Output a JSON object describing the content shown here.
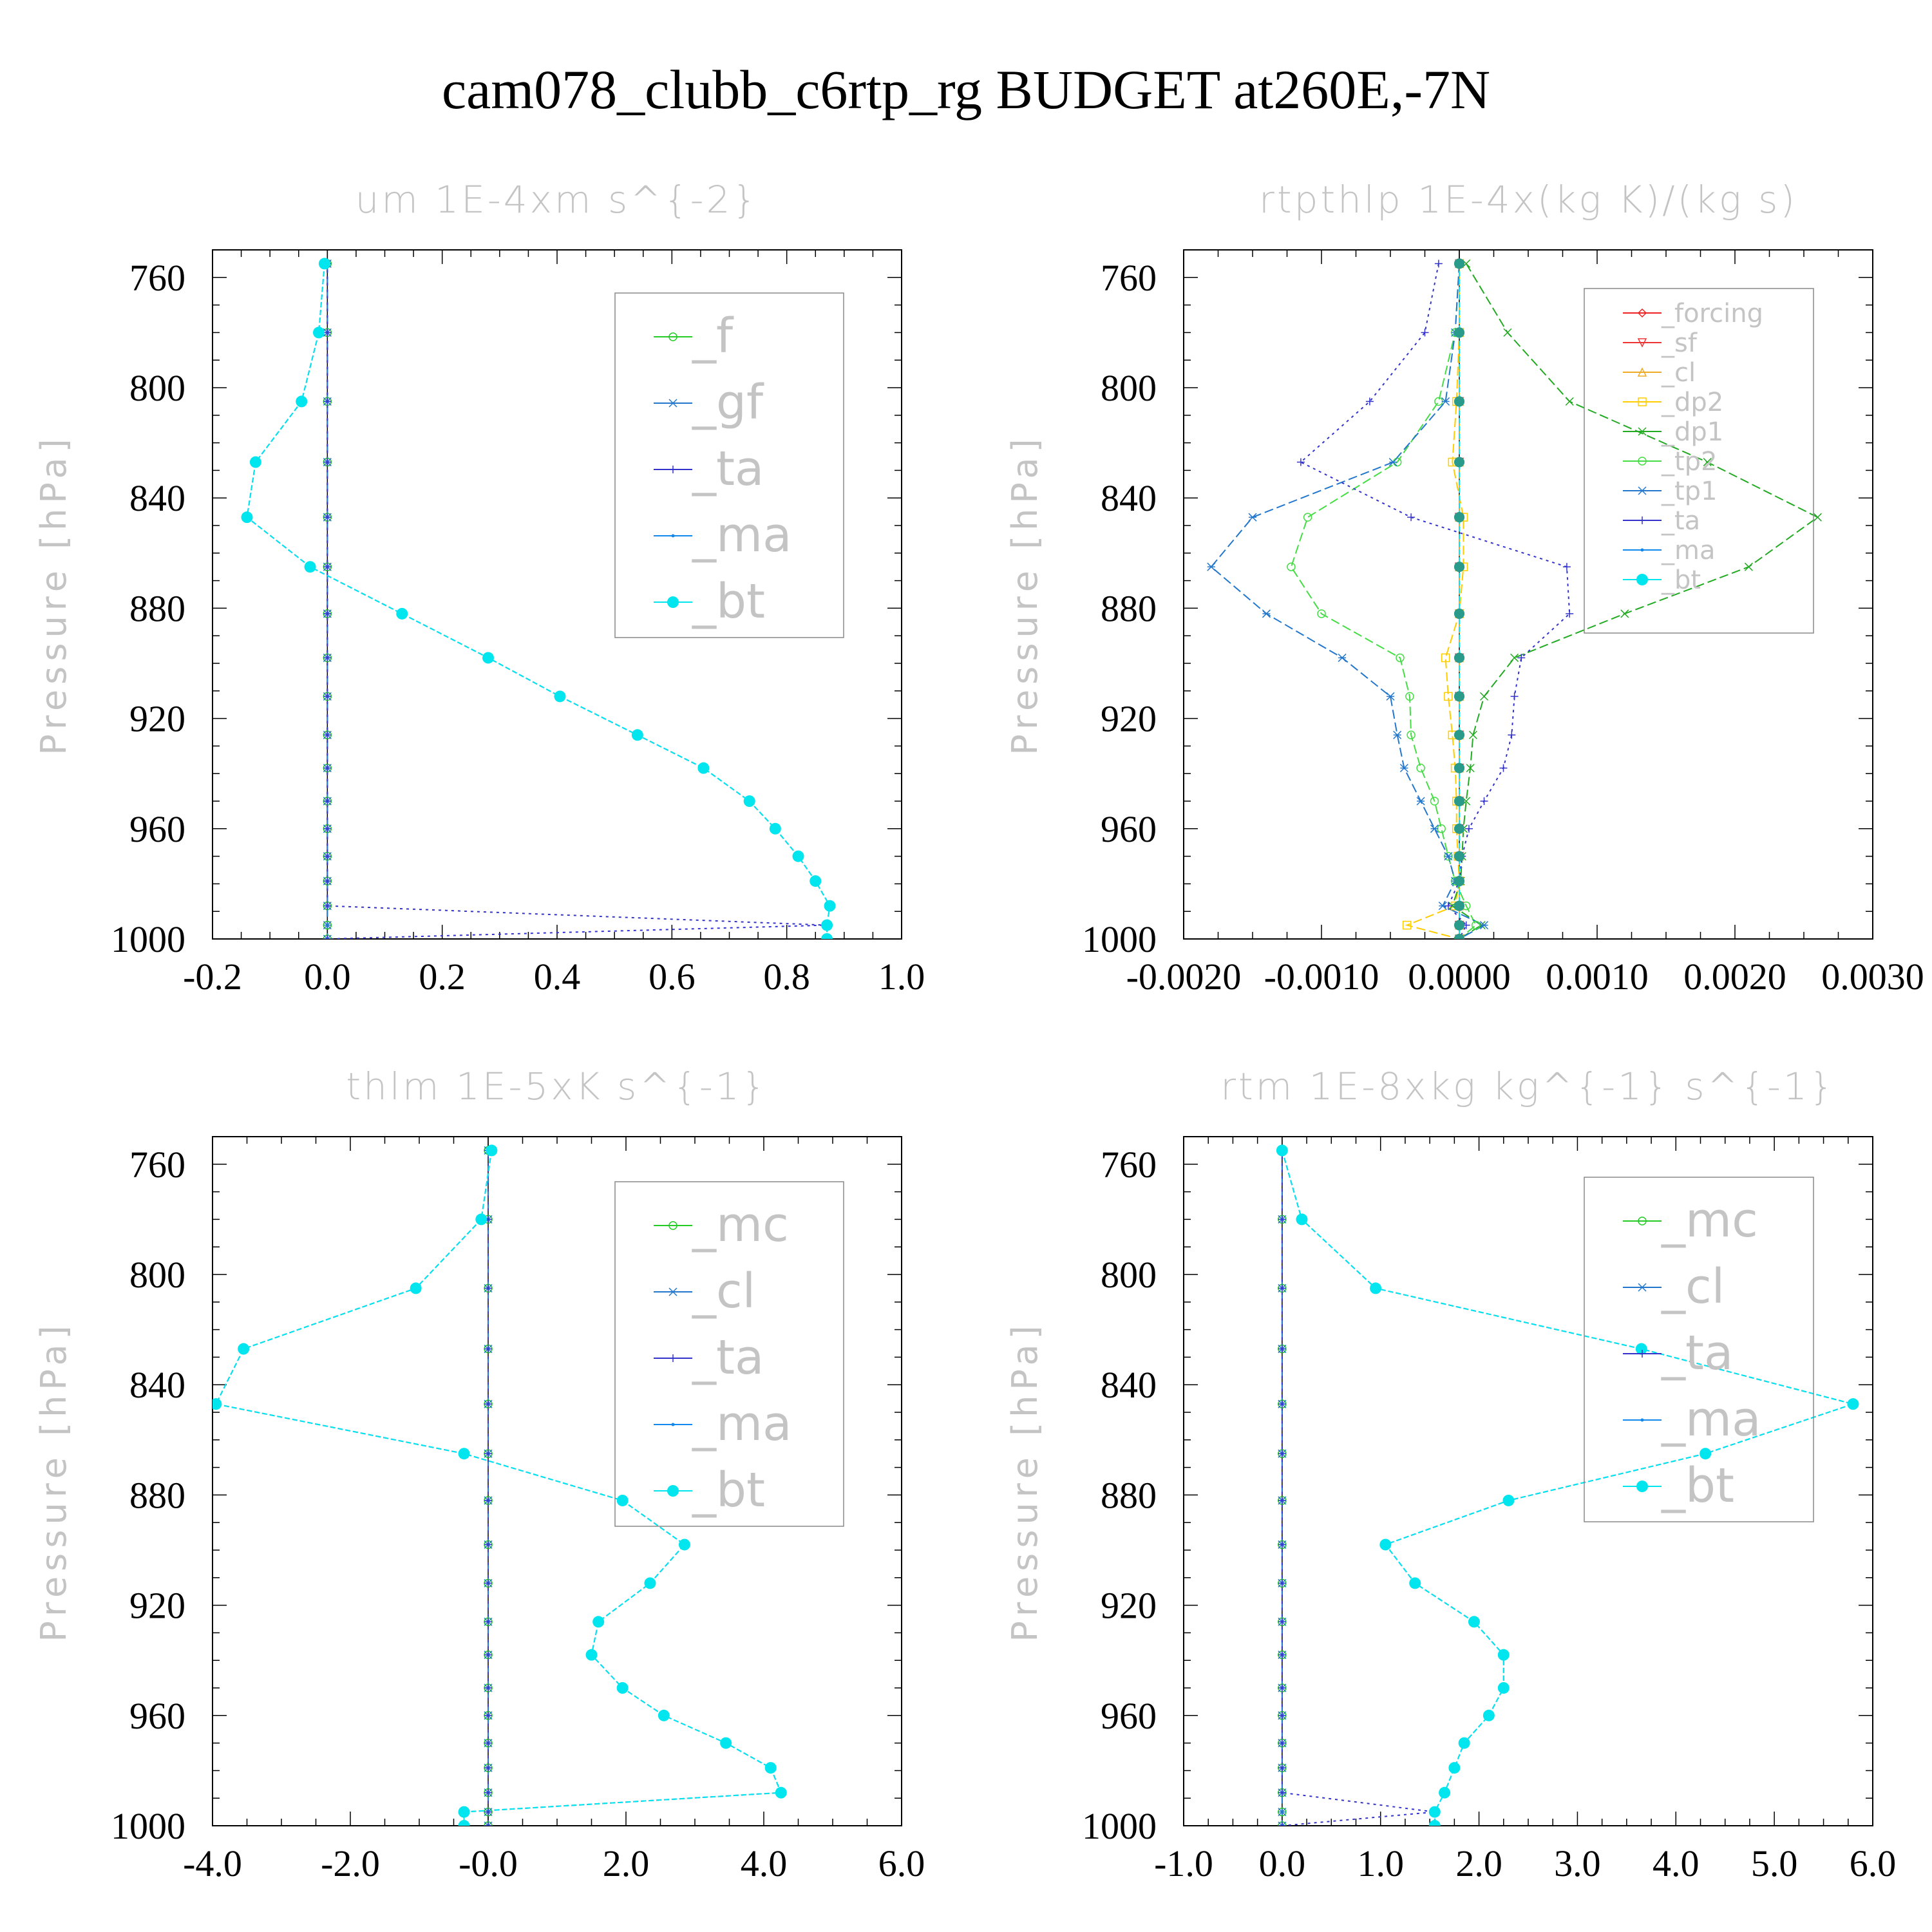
{
  "title": "cam078_clubb_c6rtp_rg  BUDGET at260E,-7N",
  "chart_data": [
    {
      "type": "line",
      "title": "um   1E-4xm s^{-2}",
      "ylabel": "Pressure [hPa]",
      "ylim": [
        1000,
        750
      ],
      "xlim": [
        -0.2,
        1.0
      ],
      "xticks": [
        "-0.2",
        "0.0",
        "0.2",
        "0.4",
        "0.6",
        "0.8",
        "1.0"
      ],
      "yticks": [
        "760",
        "800",
        "840",
        "880",
        "920",
        "960",
        "1000"
      ],
      "legend_position": "top-right",
      "levels": [
        755,
        780,
        805,
        827,
        847,
        865,
        882,
        898,
        912,
        926,
        938,
        950,
        960,
        970,
        979,
        988,
        995,
        1000
      ],
      "series": [
        {
          "name": "_f",
          "color": "#22cc22",
          "marker": "circle",
          "values": [
            0,
            0,
            0,
            0,
            0,
            0,
            0,
            0,
            0,
            0,
            0,
            0,
            0,
            0,
            0,
            0,
            0,
            0
          ]
        },
        {
          "name": "_gf",
          "color": "#2277cc",
          "marker": "star",
          "values": [
            0,
            0,
            0,
            0,
            0,
            0,
            0,
            0,
            0,
            0,
            0,
            0,
            0,
            0,
            0,
            0,
            0,
            0
          ]
        },
        {
          "name": "_ta",
          "color": "#3333cc",
          "marker": "plus",
          "values": [
            0,
            0,
            0,
            0,
            0,
            0,
            0,
            0,
            0,
            0,
            0,
            0,
            0,
            0,
            0,
            0,
            0.87,
            0
          ]
        },
        {
          "name": "_ma",
          "color": "#1188ee",
          "marker": "dot",
          "values": [
            -0.005,
            -0.015,
            -0.045,
            -0.125,
            -0.14,
            -0.03,
            0.13,
            0.28,
            0.405,
            0.54,
            0.655,
            0.735,
            0.78,
            0.82,
            0.85,
            0.875,
            0.87,
            0.87
          ]
        },
        {
          "name": "_bt",
          "color": "#00e5ee",
          "marker": "bigdot",
          "values": [
            -0.005,
            -0.015,
            -0.045,
            -0.125,
            -0.14,
            -0.03,
            0.13,
            0.28,
            0.405,
            0.54,
            0.655,
            0.735,
            0.78,
            0.82,
            0.85,
            0.875,
            0.87,
            0.87
          ]
        }
      ]
    },
    {
      "type": "line",
      "title": "rtpthlp   1E-4x(kg K)/(kg s)",
      "ylabel": "Pressure [hPa]",
      "ylim": [
        1000,
        750
      ],
      "xlim": [
        -0.002,
        0.003
      ],
      "xticks": [
        "-0.0020",
        "-0.0010",
        "0.0000",
        "0.0010",
        "0.0020",
        "0.0030"
      ],
      "yticks": [
        "760",
        "800",
        "840",
        "880",
        "920",
        "960",
        "1000"
      ],
      "legend_position": "top-right",
      "levels": [
        755,
        780,
        805,
        827,
        847,
        865,
        882,
        898,
        912,
        926,
        938,
        950,
        960,
        970,
        979,
        988,
        995,
        1000
      ],
      "series": [
        {
          "name": "_forcing",
          "color": "#ee2222",
          "marker": "diamond",
          "values": [
            0,
            0,
            0,
            0,
            0,
            0,
            0,
            0,
            0,
            0,
            0,
            0,
            0,
            0,
            0,
            0,
            0,
            0
          ]
        },
        {
          "name": "_sf",
          "color": "#ee3333",
          "marker": "tri-down",
          "values": [
            0,
            0,
            0,
            0,
            0,
            0,
            0,
            0,
            0,
            0,
            0,
            0,
            0,
            0,
            0,
            0,
            0,
            0
          ]
        },
        {
          "name": "_cl",
          "color": "#eeaa22",
          "marker": "tri-up",
          "values": [
            0,
            0,
            0,
            0,
            0,
            0,
            0,
            0,
            0,
            0,
            0,
            0,
            0,
            0,
            0,
            0,
            0,
            0
          ]
        },
        {
          "name": "_dp2",
          "color": "#ffcc00",
          "marker": "square",
          "values": [
            0,
            0,
            -2e-05,
            -5e-05,
            3e-05,
            3e-05,
            0,
            -0.0001,
            -8e-05,
            -5e-05,
            -3e-05,
            -2e-05,
            -2e-05,
            -1e-05,
            0,
            -3e-05,
            -0.00038,
            0
          ]
        },
        {
          "name": "_dp1",
          "color": "#22aa22",
          "marker": "cross",
          "values": [
            5e-05,
            0.00035,
            0.0008,
            0.0018,
            0.0026,
            0.0021,
            0.0012,
            0.0004,
            0.00018,
            0.0001,
            8e-05,
            5e-05,
            3e-05,
            2e-05,
            1e-05,
            -5e-05,
            0.00016,
            0
          ]
        },
        {
          "name": "_tp2",
          "color": "#44dd44",
          "marker": "circle",
          "values": [
            0,
            -3e-05,
            -0.00015,
            -0.00045,
            -0.0011,
            -0.00122,
            -0.001,
            -0.00043,
            -0.00036,
            -0.00035,
            -0.00028,
            -0.00018,
            -0.00013,
            -8e-05,
            -3e-05,
            5e-05,
            0.00012,
            0
          ]
        },
        {
          "name": "_tp1",
          "color": "#2277cc",
          "marker": "star",
          "values": [
            0,
            -3e-05,
            -0.0001,
            -0.00048,
            -0.0015,
            -0.0018,
            -0.0014,
            -0.00085,
            -0.0005,
            -0.00045,
            -0.0004,
            -0.00028,
            -0.00018,
            -8e-05,
            -3e-05,
            -0.00012,
            0.00018,
            0
          ]
        },
        {
          "name": "_ta",
          "color": "#3333cc",
          "marker": "plus",
          "values": [
            -0.00015,
            -0.00025,
            -0.00065,
            -0.00115,
            -0.00035,
            0.00078,
            0.0008,
            0.00045,
            0.0004,
            0.00038,
            0.00032,
            0.00018,
            7e-05,
            2e-05,
            0,
            -8e-05,
            5e-05,
            0
          ]
        },
        {
          "name": "_ma",
          "color": "#1188ee",
          "marker": "dot",
          "values": [
            0,
            0,
            0,
            0,
            0,
            0,
            0,
            0,
            0,
            0,
            0,
            0,
            0,
            0,
            0,
            0,
            0,
            0
          ]
        },
        {
          "name": "_bt",
          "color": "#00e5ee",
          "marker": "bigdot",
          "values": [
            0,
            0,
            0,
            0,
            0,
            0,
            0,
            0,
            0,
            0,
            0,
            0,
            0,
            0,
            0,
            0,
            0,
            0
          ]
        }
      ]
    },
    {
      "type": "line",
      "title": "thlm   1E-5xK s^{-1}",
      "ylabel": "Pressure [hPa]",
      "ylim": [
        1000,
        750
      ],
      "xlim": [
        -4.0,
        6.0
      ],
      "xticks": [
        "-4.0",
        "-2.0",
        "-0.0",
        "2.0",
        "4.0",
        "6.0"
      ],
      "yticks": [
        "760",
        "800",
        "840",
        "880",
        "920",
        "960",
        "1000"
      ],
      "legend_position": "top-right",
      "levels": [
        755,
        780,
        805,
        827,
        847,
        865,
        882,
        898,
        912,
        926,
        938,
        950,
        960,
        970,
        979,
        988,
        995,
        1000
      ],
      "series": [
        {
          "name": "_mc",
          "color": "#22cc22",
          "marker": "circle",
          "values": [
            0,
            0,
            0,
            0,
            0,
            0,
            0,
            0,
            0,
            0,
            0,
            0,
            0,
            0,
            0,
            0,
            0,
            0
          ]
        },
        {
          "name": "_cl",
          "color": "#2277cc",
          "marker": "star",
          "values": [
            0,
            0,
            0,
            0,
            0,
            0,
            0,
            0,
            0,
            0,
            0,
            0,
            0,
            0,
            0,
            0,
            0,
            0
          ]
        },
        {
          "name": "_ta",
          "color": "#3333cc",
          "marker": "plus",
          "values": [
            0,
            0,
            0,
            0,
            0,
            0,
            0,
            0,
            0,
            0,
            0,
            0,
            0,
            0,
            0,
            0,
            0,
            0
          ]
        },
        {
          "name": "_ma",
          "color": "#1188ee",
          "marker": "dot",
          "values": [
            0.05,
            -0.1,
            -1.05,
            -3.55,
            -3.95,
            -0.35,
            1.95,
            2.85,
            2.35,
            1.6,
            1.5,
            1.95,
            2.55,
            3.45,
            4.1,
            4.25,
            -0.35,
            -0.35
          ]
        },
        {
          "name": "_bt",
          "color": "#00e5ee",
          "marker": "bigdot",
          "values": [
            0.05,
            -0.1,
            -1.05,
            -3.55,
            -3.95,
            -0.35,
            1.95,
            2.85,
            2.35,
            1.6,
            1.5,
            1.95,
            2.55,
            3.45,
            4.1,
            4.25,
            -0.35,
            -0.35
          ]
        }
      ]
    },
    {
      "type": "line",
      "title": "rtm   1E-8xkg kg^{-1} s^{-1}",
      "ylabel": "Pressure [hPa]",
      "ylim": [
        1000,
        750
      ],
      "xlim": [
        -1.0,
        6.0
      ],
      "xticks": [
        "-1.0",
        "0.0",
        "1.0",
        "2.0",
        "3.0",
        "4.0",
        "5.0",
        "6.0"
      ],
      "yticks": [
        "760",
        "800",
        "840",
        "880",
        "920",
        "960",
        "1000"
      ],
      "legend_position": "top-right",
      "levels": [
        755,
        780,
        805,
        827,
        847,
        865,
        882,
        898,
        912,
        926,
        938,
        950,
        960,
        970,
        979,
        988,
        995,
        1000
      ],
      "series": [
        {
          "name": "_mc",
          "color": "#22cc22",
          "marker": "circle",
          "values": [
            0,
            0,
            0,
            0,
            0,
            0,
            0,
            0,
            0,
            0,
            0,
            0,
            0,
            0,
            0,
            0,
            0,
            0
          ]
        },
        {
          "name": "_cl",
          "color": "#2277cc",
          "marker": "star",
          "values": [
            0,
            0,
            0,
            0,
            0,
            0,
            0,
            0,
            0,
            0,
            0,
            0,
            0,
            0,
            0,
            0,
            0,
            0
          ]
        },
        {
          "name": "_ta",
          "color": "#3333cc",
          "marker": "plus",
          "values": [
            0,
            0,
            0,
            0,
            0,
            0,
            0,
            0,
            0,
            0,
            0,
            0,
            0,
            0,
            0,
            0,
            1.55,
            0
          ]
        },
        {
          "name": "_ma",
          "color": "#1188ee",
          "marker": "dot",
          "values": [
            0,
            0.2,
            0.95,
            3.65,
            5.8,
            4.3,
            2.3,
            1.05,
            1.35,
            1.95,
            2.25,
            2.25,
            2.1,
            1.85,
            1.75,
            1.65,
            1.55,
            1.55
          ]
        },
        {
          "name": "_bt",
          "color": "#00e5ee",
          "marker": "bigdot",
          "values": [
            0,
            0.2,
            0.95,
            3.65,
            5.8,
            4.3,
            2.3,
            1.05,
            1.35,
            1.95,
            2.25,
            2.25,
            2.1,
            1.85,
            1.75,
            1.65,
            1.55,
            1.55
          ]
        }
      ]
    }
  ]
}
